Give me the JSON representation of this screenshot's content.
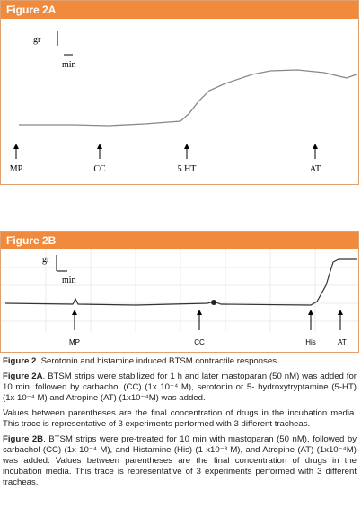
{
  "panels": [
    {
      "title": "Figure 2A",
      "scale_y": "gr",
      "scale_x": "min",
      "arrows": [
        "MP",
        "CC",
        "5 HT",
        "AT"
      ]
    },
    {
      "title": "Figure 2B",
      "scale_y": "gr",
      "scale_x": "min",
      "arrows": [
        "MP",
        "CC",
        "His",
        "AT"
      ]
    }
  ],
  "captions": [
    {
      "lead": "Figure 2",
      "text": ". Serotonin and histamine induced BTSM contractile responses."
    },
    {
      "lead": "Figure 2A",
      "text": ". BTSM strips were stabilized for 1 h and later mastoparan (50 nM) was added for 10 min, followed by carbachol (CC) (1x 10⁻⁴ M), serotonin or 5- hydroxytryptamine (5-HT) (1x 10⁻⁴ M) and Atropine (AT) (1x10⁻⁴M) was added."
    },
    {
      "lead": "",
      "text": "Values between parentheses are the final concentration of drugs in the incubation media. This trace is representative of 3 experiments performed with 3 different tracheas."
    },
    {
      "lead": "Figure 2B",
      "text": ". BTSM strips were pre-treated for 10 min with mastoparan (50 nM), followed by carbachol (CC) (1x 10⁻⁴ M), and Histamine (His) (1 x10⁻³ M), and Atropine (AT) (1x10⁻⁴M) was added. Values between parentheses are the final concentration of drugs in the incubation media. This trace is representative of 3 experiments performed with 3 different tracheas."
    }
  ]
}
